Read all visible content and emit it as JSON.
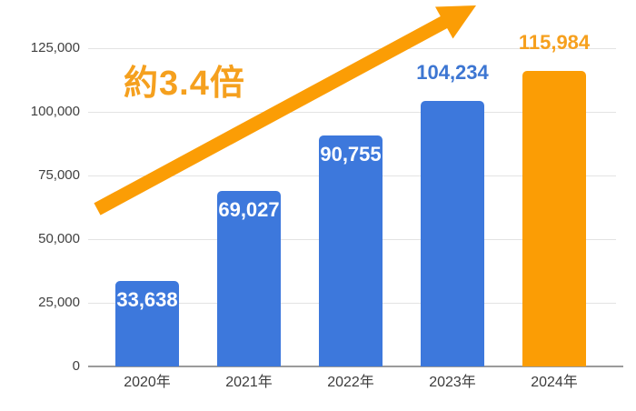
{
  "chart_data": {
    "type": "bar",
    "title": "",
    "xlabel": "",
    "ylabel": "",
    "categories": [
      "2020年",
      "2021年",
      "2022年",
      "2023年",
      "2024年"
    ],
    "values": [
      33638,
      69027,
      90755,
      104234,
      115984
    ],
    "bar_labels": [
      "33,638",
      "69,027",
      "90,755",
      "104,234",
      "115,984"
    ],
    "label_positions": [
      "inside",
      "inside",
      "inside",
      "above",
      "above"
    ],
    "bar_colors": [
      "#3d78dc",
      "#3d78dc",
      "#3d78dc",
      "#3d78dc",
      "#fb9d05"
    ],
    "label_colors": [
      "#ffffff",
      "#ffffff",
      "#ffffff",
      "#3d76d2",
      "#f6a01e"
    ],
    "ylim": [
      0,
      125000
    ],
    "y_ticks": [
      0,
      25000,
      50000,
      75000,
      100000,
      125000
    ],
    "y_tick_labels": [
      "0",
      "25,000",
      "50,000",
      "75,000",
      "100,000",
      "125,000"
    ],
    "grid": true,
    "legend": false,
    "annotation": {
      "text": "約3.4倍",
      "color": "#f5a01e"
    },
    "arrow_color": "#fb9d05"
  }
}
